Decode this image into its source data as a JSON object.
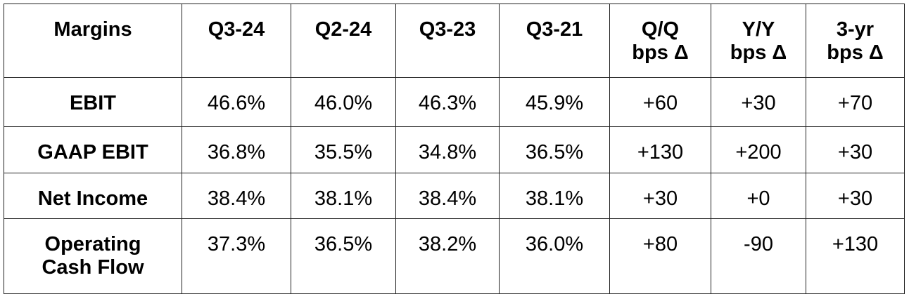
{
  "table": {
    "header": [
      "Margins",
      "Q3-24",
      "Q2-24",
      "Q3-23",
      "Q3-21",
      "Q/Q\nbps Δ",
      "Y/Y\nbps Δ",
      "3-yr\nbps Δ"
    ],
    "rows": [
      [
        "EBIT",
        "46.6%",
        "46.0%",
        "46.3%",
        "45.9%",
        "+60",
        "+30",
        "+70"
      ],
      [
        "GAAP EBIT",
        "36.8%",
        "35.5%",
        "34.8%",
        "36.5%",
        "+130",
        "+200",
        "+30"
      ],
      [
        "Net Income",
        "38.4%",
        "38.1%",
        "38.4%",
        "38.1%",
        "+30",
        "+0",
        "+30"
      ],
      [
        "Operating\nCash Flow",
        "37.3%",
        "36.5%",
        "38.2%",
        "36.0%",
        "+80",
        "-90",
        "+130"
      ]
    ]
  }
}
